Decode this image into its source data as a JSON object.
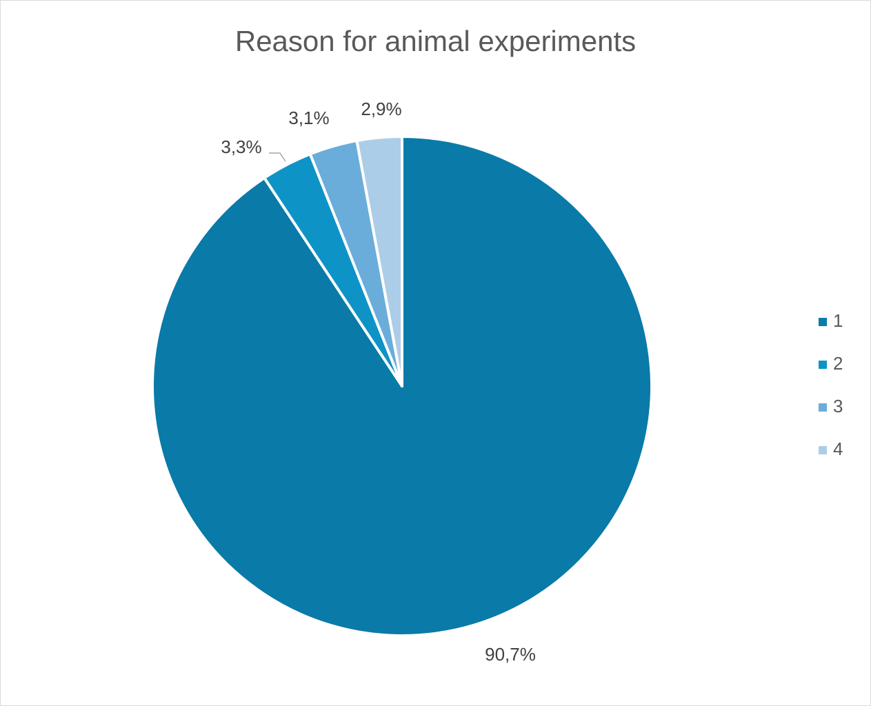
{
  "chart_data": {
    "type": "pie",
    "title": "Reason for animal experiments",
    "categories": [
      "1",
      "2",
      "3",
      "4"
    ],
    "values": [
      90.7,
      3.3,
      3.1,
      2.9
    ],
    "data_labels": [
      "90,7%",
      "3,3%",
      "3,1%",
      "2,9%"
    ],
    "colors": [
      "#0a7aa8",
      "#0e93c7",
      "#6aadda",
      "#accde7"
    ],
    "start_angle_deg": 0,
    "direction": "clockwise",
    "legend": "right",
    "legend_entries": [
      "1",
      "2",
      "3",
      "4"
    ]
  }
}
